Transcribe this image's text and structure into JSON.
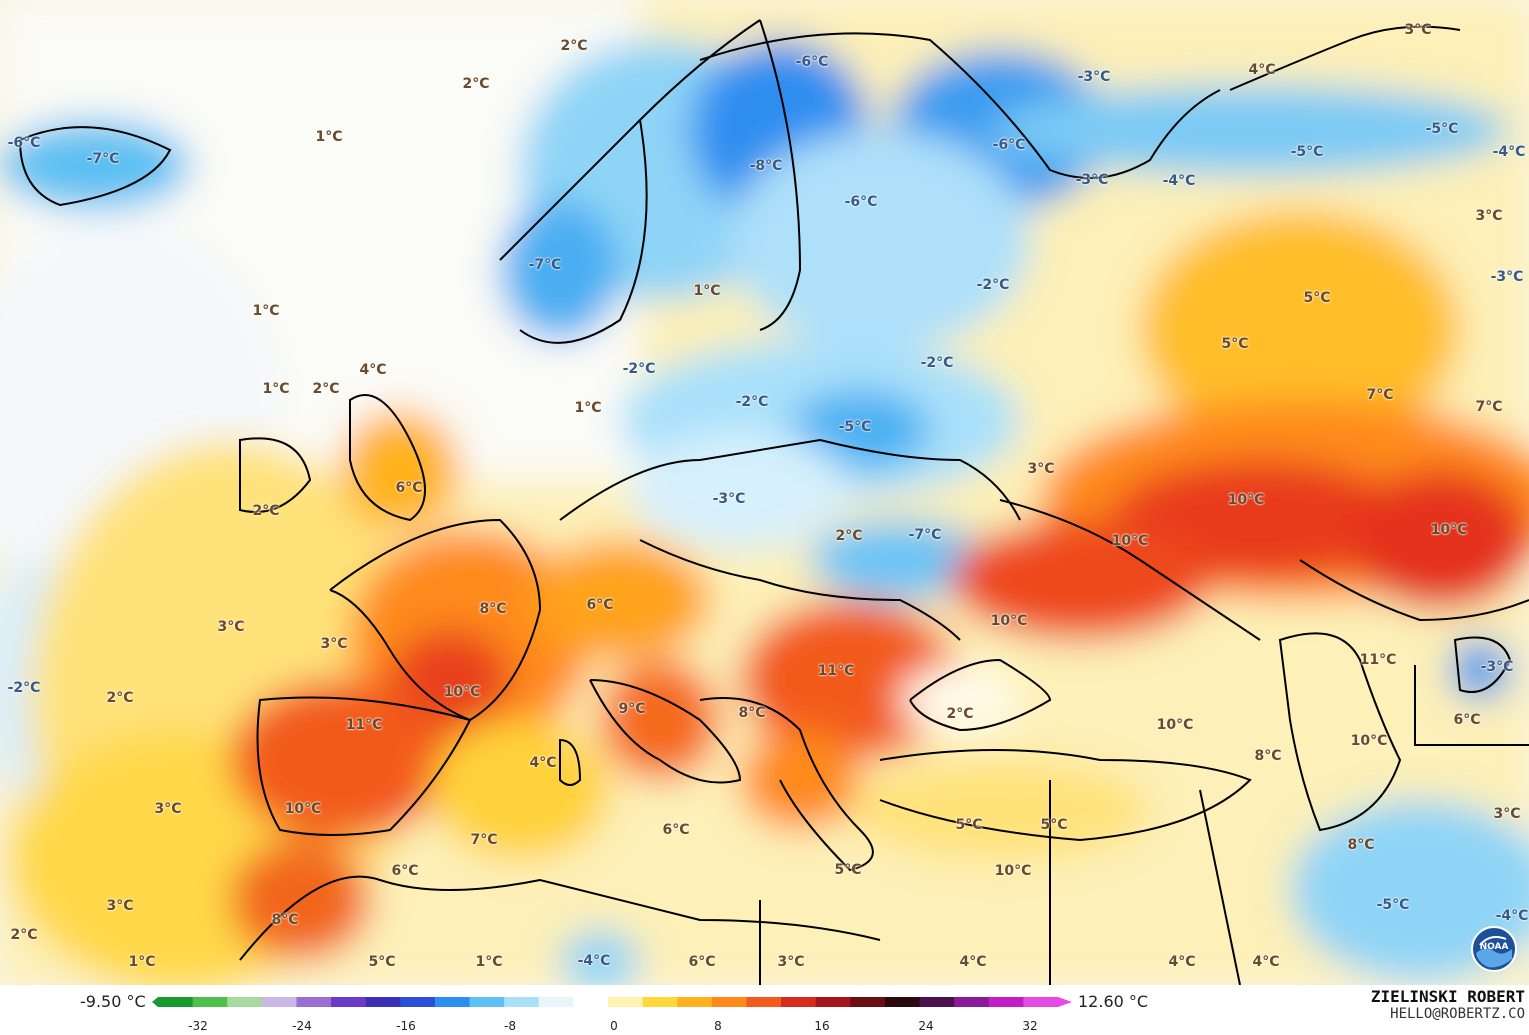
{
  "labels": [
    {
      "t": "2°C"
    },
    {
      "t": "2°C"
    },
    {
      "t": "1°C"
    },
    {
      "t": "-6°C"
    },
    {
      "t": "-7°C"
    },
    {
      "t": "1°C"
    },
    {
      "t": "1°C"
    },
    {
      "t": "2°C"
    },
    {
      "t": "4°C"
    },
    {
      "t": "2°C"
    },
    {
      "t": "6°C"
    },
    {
      "t": "-7°C"
    },
    {
      "t": "-6°C"
    },
    {
      "t": "-8°C"
    },
    {
      "t": "-6°C"
    },
    {
      "t": "-3°C"
    },
    {
      "t": "-6°C"
    },
    {
      "t": "-3°C"
    },
    {
      "t": "-4°C"
    },
    {
      "t": "1°C"
    },
    {
      "t": "-2°C"
    },
    {
      "t": "-2°C"
    },
    {
      "t": "-2°C"
    },
    {
      "t": "1°C"
    },
    {
      "t": "-2°C"
    },
    {
      "t": "-5°C"
    },
    {
      "t": "-3°C"
    },
    {
      "t": "2°C"
    },
    {
      "t": "-7°C"
    },
    {
      "t": "3°C"
    },
    {
      "t": "3°C"
    },
    {
      "t": "4°C"
    },
    {
      "t": "-5°C"
    },
    {
      "t": "-5°C"
    },
    {
      "t": "-4°C"
    },
    {
      "t": "3°C"
    },
    {
      "t": "-3°C"
    },
    {
      "t": "5°C"
    },
    {
      "t": "5°C"
    },
    {
      "t": "7°C"
    },
    {
      "t": "7°C"
    },
    {
      "t": "10°C"
    },
    {
      "t": "10°C"
    },
    {
      "t": "10°C"
    },
    {
      "t": "10°C"
    },
    {
      "t": "8°C"
    },
    {
      "t": "6°C"
    },
    {
      "t": "3°C"
    },
    {
      "t": "3°C"
    },
    {
      "t": "-2°C"
    },
    {
      "t": "2°C"
    },
    {
      "t": "10°C"
    },
    {
      "t": "11°C"
    },
    {
      "t": "9°C"
    },
    {
      "t": "8°C"
    },
    {
      "t": "11°C"
    },
    {
      "t": "4°C"
    },
    {
      "t": "10°C"
    },
    {
      "t": "3°C"
    },
    {
      "t": "7°C"
    },
    {
      "t": "6°C"
    },
    {
      "t": "6°C"
    },
    {
      "t": "8°C"
    },
    {
      "t": "3°C"
    },
    {
      "t": "2°C"
    },
    {
      "t": "1°C"
    },
    {
      "t": "5°C"
    },
    {
      "t": "1°C"
    },
    {
      "t": "-4°C"
    },
    {
      "t": "6°C"
    },
    {
      "t": "3°C"
    },
    {
      "t": "4°C"
    },
    {
      "t": "2°C"
    },
    {
      "t": "10°C"
    },
    {
      "t": "8°C"
    },
    {
      "t": "5°C"
    },
    {
      "t": "5°C"
    },
    {
      "t": "5°C"
    },
    {
      "t": "10°C"
    },
    {
      "t": "11°C"
    },
    {
      "t": "-3°C"
    },
    {
      "t": "6°C"
    },
    {
      "t": "10°C"
    },
    {
      "t": "3°C"
    },
    {
      "t": "8°C"
    },
    {
      "t": "-5°C"
    },
    {
      "t": "-4°C"
    },
    {
      "t": "4°C"
    },
    {
      "t": "4°C"
    }
  ],
  "legend": {
    "min": "-9.50 °C",
    "max": "12.60 °C",
    "ticks": [
      "-32",
      "-24",
      "-16",
      "-8",
      "0",
      "8",
      "16",
      "24",
      "32"
    ],
    "colors": [
      "#1a9a2e",
      "#4fc14a",
      "#a6dba0",
      "#c9b8e6",
      "#9a6fd4",
      "#6a3bc8",
      "#3b2fb8",
      "#2b4fd8",
      "#2b8ef0",
      "#5ec0f5",
      "#a9e0fa",
      "#e8f6fc",
      "#ffffff",
      "#fff3b0",
      "#ffd83a",
      "#ffb21c",
      "#ff8a1a",
      "#f25a1e",
      "#d92a1e",
      "#a8141e",
      "#6a0e14",
      "#2a0a0e",
      "#4a1050",
      "#8a1a9a",
      "#c21ec8",
      "#e64ae6"
    ]
  },
  "credit": {
    "author": "ZIELINSKI ROBERT",
    "email": "HELLO@ROBERTZ.CO"
  },
  "logo": {
    "name": "noaa-logo",
    "text": "NOAA"
  }
}
